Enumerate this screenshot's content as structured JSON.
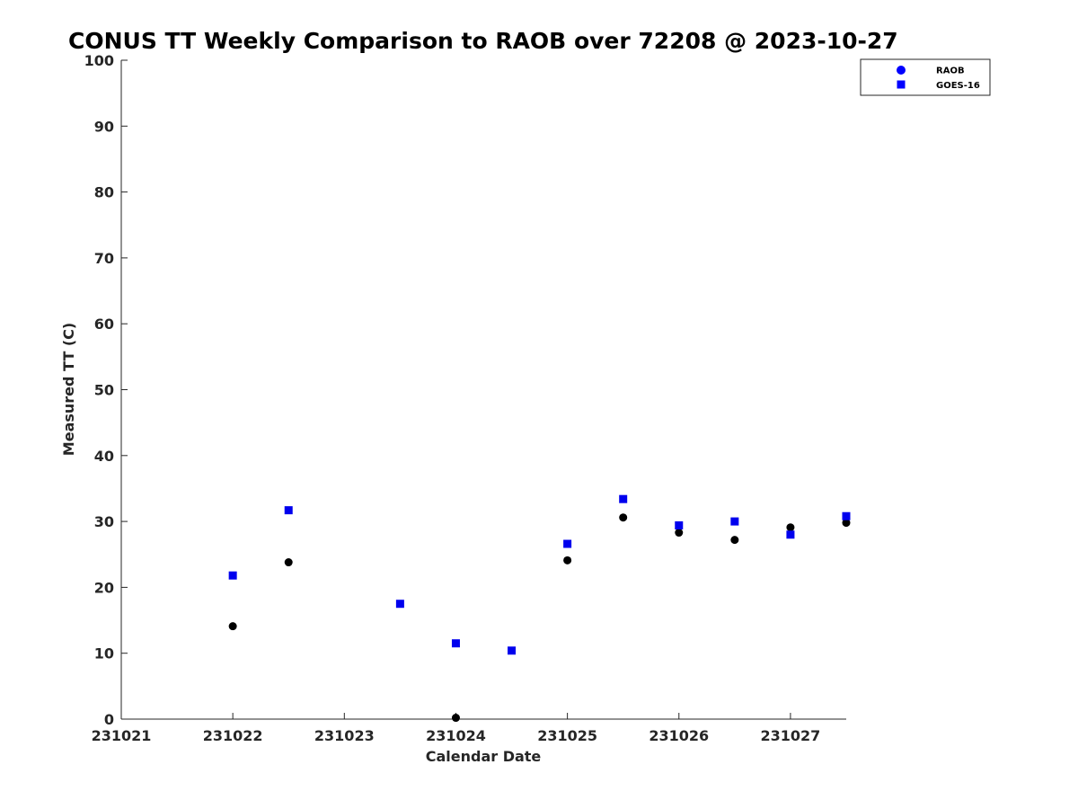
{
  "chart_data": {
    "type": "scatter",
    "title": "CONUS TT Weekly Comparison to RAOB over 72208 @ 2023-10-27",
    "xlabel": "Calendar Date",
    "ylabel": "Measured TT (C)",
    "xlim": [
      231021,
      231027.5
    ],
    "ylim": [
      0,
      100
    ],
    "x_ticks": [
      231021,
      231022,
      231023,
      231024,
      231025,
      231026,
      231027
    ],
    "x_tick_labels": [
      "231021",
      "231022",
      "231023",
      "231024",
      "231025",
      "231026",
      "231027"
    ],
    "y_ticks": [
      0,
      10,
      20,
      30,
      40,
      50,
      60,
      70,
      80,
      90,
      100
    ],
    "y_tick_labels": [
      "0",
      "10",
      "20",
      "30",
      "40",
      "50",
      "60",
      "70",
      "80",
      "90",
      "100"
    ],
    "grid": false,
    "legend_position": "top-right",
    "series": [
      {
        "name": "RAOB",
        "marker": "circle",
        "legend_color": "#0000ff",
        "color": "#000000",
        "points": [
          {
            "x": 231022.0,
            "y": 14.1
          },
          {
            "x": 231022.5,
            "y": 23.8
          },
          {
            "x": 231024.0,
            "y": 0.2
          },
          {
            "x": 231025.0,
            "y": 24.1
          },
          {
            "x": 231025.5,
            "y": 30.6
          },
          {
            "x": 231026.0,
            "y": 28.3
          },
          {
            "x": 231026.5,
            "y": 27.2
          },
          {
            "x": 231027.0,
            "y": 29.1
          },
          {
            "x": 231027.5,
            "y": 29.8
          }
        ]
      },
      {
        "name": "GOES-16",
        "marker": "square",
        "legend_color": "#0000ff",
        "color": "#0000ee",
        "points": [
          {
            "x": 231022.0,
            "y": 21.8
          },
          {
            "x": 231022.5,
            "y": 31.7
          },
          {
            "x": 231023.5,
            "y": 17.5
          },
          {
            "x": 231024.0,
            "y": 11.5
          },
          {
            "x": 231024.5,
            "y": 10.4
          },
          {
            "x": 231025.0,
            "y": 26.6
          },
          {
            "x": 231025.5,
            "y": 33.4
          },
          {
            "x": 231026.0,
            "y": 29.4
          },
          {
            "x": 231026.5,
            "y": 30.0
          },
          {
            "x": 231027.0,
            "y": 28.0
          },
          {
            "x": 231027.5,
            "y": 30.8
          }
        ]
      }
    ]
  }
}
